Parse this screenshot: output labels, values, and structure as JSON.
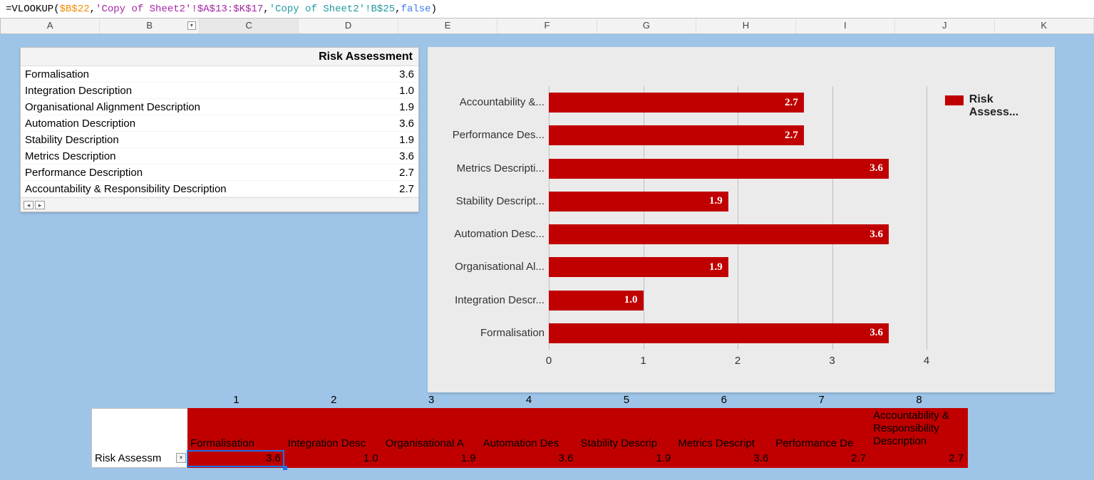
{
  "formula": {
    "fn": "=VLOOKUP(",
    "arg1": "$B$22",
    "sep1": ",",
    "arg2": "'Copy of Sheet2'!$A$13:$K$17",
    "sep2": ",",
    "arg3": "'Copy of Sheet2'!B$25",
    "sep3": ",",
    "arg4": "false",
    "close": ")"
  },
  "columns": [
    "A",
    "B",
    "C",
    "D",
    "E",
    "F",
    "G",
    "H",
    "I",
    "J",
    "K"
  ],
  "selected_column_index": 2,
  "data_table": {
    "header_value_col": "Risk Assessment",
    "rows": [
      {
        "label": "Formalisation",
        "value": "3.6"
      },
      {
        "label": "Integration Description",
        "value": "1.0"
      },
      {
        "label": "Organisational Alignment Description",
        "value": "1.9"
      },
      {
        "label": "Automation Description",
        "value": "3.6"
      },
      {
        "label": "Stability Description",
        "value": "1.9"
      },
      {
        "label": "Metrics Description",
        "value": "3.6"
      },
      {
        "label": "Performance Description",
        "value": "2.7"
      },
      {
        "label": "Accountability & Responsibility Description",
        "value": "2.7"
      }
    ]
  },
  "chart": {
    "type": "bar",
    "legend_label": "Risk Assess...",
    "bar_color": "#c00000",
    "background_color": "#ebebeb",
    "grid_color": "#bfbfbf",
    "value_font": "Georgia, serif",
    "value_fontsize": 15,
    "value_color": "#ffffff",
    "xlim": [
      0,
      4
    ],
    "xtick_step": 1,
    "xticks": [
      "0",
      "1",
      "2",
      "3",
      "4"
    ],
    "bars": [
      {
        "label": "Accountability &...",
        "value": 2.7,
        "value_label": "2.7"
      },
      {
        "label": "Performance Des...",
        "value": 2.7,
        "value_label": "2.7"
      },
      {
        "label": "Metrics Descripti...",
        "value": 3.6,
        "value_label": "3.6"
      },
      {
        "label": "Stability Descript...",
        "value": 1.9,
        "value_label": "1.9"
      },
      {
        "label": "Automation Desc...",
        "value": 3.6,
        "value_label": "3.6"
      },
      {
        "label": "Organisational Al...",
        "value": 1.9,
        "value_label": "1.9"
      },
      {
        "label": "Integration Descr...",
        "value": 1.0,
        "value_label": "1.0"
      },
      {
        "label": "Formalisation",
        "value": 3.6,
        "value_label": "3.6"
      }
    ]
  },
  "bottom": {
    "numbers": [
      "1",
      "2",
      "3",
      "4",
      "5",
      "6",
      "7",
      "8"
    ],
    "row_label": "Risk Assessm",
    "band_color": "#c00000",
    "header_labels": [
      "Formalisation",
      "Integration Desc",
      "Organisational A",
      "Automation Des",
      "Stability Descrip",
      "Metrics Descript",
      "Performance De",
      "Accountability & Responsibility Description"
    ],
    "values": [
      "3.6",
      "1.0",
      "1.9",
      "3.6",
      "1.9",
      "3.6",
      "2.7",
      "2.7"
    ],
    "selected_index": 0
  }
}
